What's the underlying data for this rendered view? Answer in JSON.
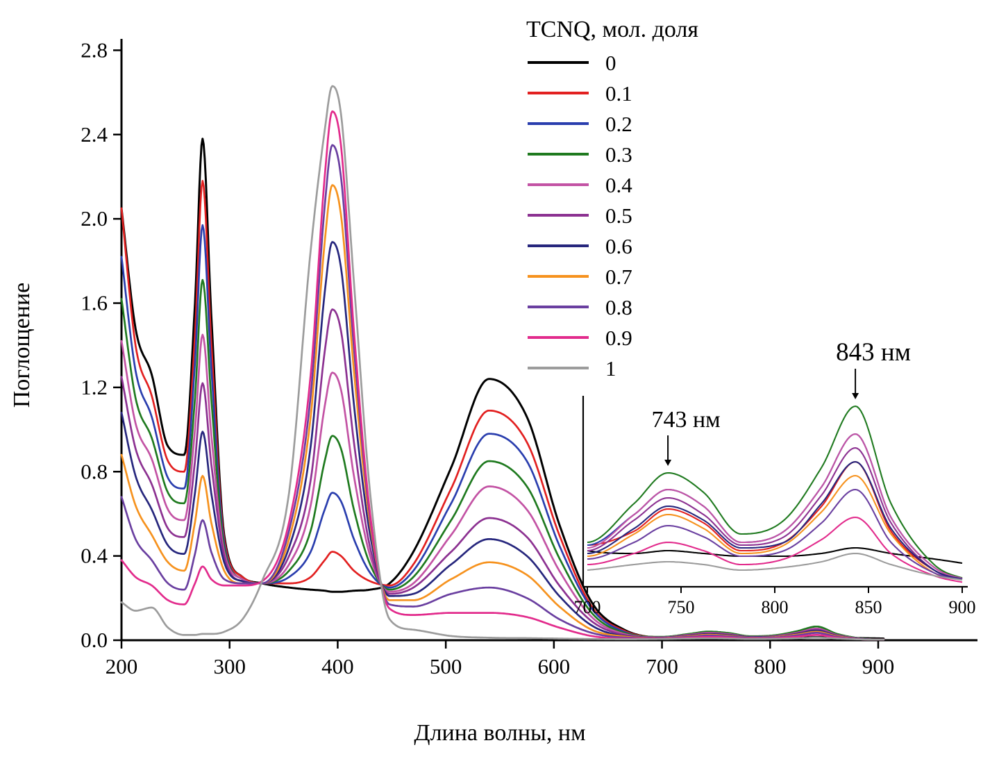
{
  "figure": {
    "background": "#ffffff"
  },
  "chart_data": {
    "type": "line",
    "title": "",
    "xlabel": "Длина волны,  нм",
    "ylabel": "Поглощение",
    "xlim": [
      200,
      990
    ],
    "ylim": [
      0,
      2.9
    ],
    "xticks": [
      200,
      300,
      400,
      500,
      600,
      700,
      800,
      900
    ],
    "yticks": [
      0.0,
      0.4,
      0.8,
      1.2,
      1.6,
      2.0,
      2.4,
      2.8
    ],
    "grid": false,
    "legend_title": "TCNQ, мол. доля",
    "legend_position": "top-right",
    "axis_color": "#000000",
    "x": [
      200,
      213,
      228,
      243,
      258,
      268,
      275,
      283,
      295,
      312,
      330,
      355,
      375,
      388,
      395,
      403,
      415,
      430,
      448,
      470,
      505,
      540,
      575,
      605,
      635,
      665,
      700,
      725,
      743,
      762,
      782,
      805,
      825,
      843,
      862,
      885,
      905
    ],
    "series": [
      {
        "name": "0",
        "color": "#000000",
        "values": [
          2.05,
          1.48,
          1.26,
          0.92,
          0.88,
          1.6,
          2.38,
          1.55,
          0.5,
          0.3,
          0.27,
          0.25,
          0.24,
          0.235,
          0.23,
          0.23,
          0.235,
          0.24,
          0.27,
          0.42,
          0.82,
          1.24,
          1.06,
          0.55,
          0.18,
          0.05,
          0.013,
          0.012,
          0.013,
          0.012,
          0.011,
          0.011,
          0.012,
          0.014,
          0.012,
          0.01,
          0.008
        ]
      },
      {
        "name": "0.1",
        "color": "#e22020",
        "values": [
          2.05,
          1.4,
          1.16,
          0.85,
          0.8,
          1.45,
          2.18,
          1.42,
          0.48,
          0.3,
          0.27,
          0.27,
          0.3,
          0.38,
          0.42,
          0.4,
          0.33,
          0.28,
          0.26,
          0.36,
          0.72,
          1.09,
          0.94,
          0.5,
          0.16,
          0.045,
          0.015,
          0.02,
          0.028,
          0.023,
          0.013,
          0.016,
          0.029,
          0.045,
          0.02,
          0.006,
          0.002
        ]
      },
      {
        "name": "0.2",
        "color": "#2a3eae",
        "values": [
          1.82,
          1.28,
          1.06,
          0.77,
          0.72,
          1.32,
          1.97,
          1.3,
          0.46,
          0.29,
          0.27,
          0.3,
          0.42,
          0.62,
          0.7,
          0.66,
          0.48,
          0.32,
          0.25,
          0.33,
          0.65,
          0.98,
          0.85,
          0.45,
          0.15,
          0.04,
          0.015,
          0.026,
          0.035,
          0.029,
          0.016,
          0.02,
          0.036,
          0.055,
          0.025,
          0.007,
          0.002
        ]
      },
      {
        "name": "0.3",
        "color": "#1f7a1f",
        "values": [
          1.62,
          1.15,
          0.96,
          0.7,
          0.65,
          1.15,
          1.71,
          1.15,
          0.44,
          0.29,
          0.27,
          0.33,
          0.52,
          0.85,
          0.97,
          0.91,
          0.62,
          0.36,
          0.24,
          0.3,
          0.57,
          0.85,
          0.73,
          0.39,
          0.13,
          0.035,
          0.016,
          0.03,
          0.041,
          0.034,
          0.019,
          0.024,
          0.043,
          0.065,
          0.03,
          0.008,
          0.002
        ]
      },
      {
        "name": "0.4",
        "color": "#c353a4",
        "values": [
          1.42,
          1.03,
          0.86,
          0.62,
          0.57,
          1.0,
          1.45,
          0.98,
          0.42,
          0.29,
          0.27,
          0.36,
          0.64,
          1.11,
          1.27,
          1.19,
          0.78,
          0.4,
          0.23,
          0.27,
          0.5,
          0.73,
          0.62,
          0.33,
          0.11,
          0.03,
          0.014,
          0.026,
          0.035,
          0.029,
          0.016,
          0.02,
          0.036,
          0.055,
          0.025,
          0.007,
          0.002
        ]
      },
      {
        "name": "0.5",
        "color": "#8c3191",
        "values": [
          1.25,
          0.91,
          0.74,
          0.53,
          0.49,
          0.85,
          1.22,
          0.84,
          0.4,
          0.28,
          0.27,
          0.4,
          0.76,
          1.37,
          1.57,
          1.47,
          0.94,
          0.44,
          0.22,
          0.25,
          0.42,
          0.58,
          0.49,
          0.26,
          0.09,
          0.025,
          0.013,
          0.024,
          0.032,
          0.026,
          0.015,
          0.018,
          0.033,
          0.05,
          0.023,
          0.006,
          0.002
        ]
      },
      {
        "name": "0.6",
        "color": "#26267d",
        "values": [
          1.08,
          0.78,
          0.62,
          0.45,
          0.41,
          0.7,
          0.99,
          0.7,
          0.37,
          0.28,
          0.27,
          0.44,
          0.92,
          1.65,
          1.89,
          1.77,
          1.12,
          0.5,
          0.21,
          0.22,
          0.36,
          0.48,
          0.4,
          0.21,
          0.07,
          0.02,
          0.012,
          0.021,
          0.029,
          0.024,
          0.014,
          0.016,
          0.03,
          0.045,
          0.021,
          0.006,
          0.002
        ]
      },
      {
        "name": "0.7",
        "color": "#f6921e",
        "values": [
          0.88,
          0.64,
          0.5,
          0.37,
          0.33,
          0.56,
          0.78,
          0.56,
          0.33,
          0.27,
          0.27,
          0.48,
          1.06,
          1.89,
          2.16,
          2.02,
          1.28,
          0.55,
          0.19,
          0.19,
          0.29,
          0.37,
          0.31,
          0.16,
          0.05,
          0.018,
          0.011,
          0.019,
          0.026,
          0.021,
          0.012,
          0.015,
          0.027,
          0.04,
          0.019,
          0.005,
          0.002
        ]
      },
      {
        "name": "0.8",
        "color": "#6a3fa0",
        "values": [
          0.68,
          0.48,
          0.38,
          0.27,
          0.24,
          0.41,
          0.57,
          0.42,
          0.29,
          0.27,
          0.27,
          0.52,
          1.16,
          2.06,
          2.35,
          2.2,
          1.39,
          0.58,
          0.17,
          0.16,
          0.22,
          0.25,
          0.2,
          0.1,
          0.035,
          0.013,
          0.01,
          0.016,
          0.022,
          0.018,
          0.011,
          0.013,
          0.023,
          0.035,
          0.016,
          0.005,
          0.002
        ]
      },
      {
        "name": "0.9",
        "color": "#e22b8c",
        "values": [
          0.38,
          0.3,
          0.26,
          0.19,
          0.17,
          0.27,
          0.35,
          0.29,
          0.26,
          0.26,
          0.28,
          0.56,
          1.26,
          2.2,
          2.51,
          2.35,
          1.47,
          0.6,
          0.15,
          0.12,
          0.13,
          0.13,
          0.11,
          0.06,
          0.02,
          0.008,
          0.008,
          0.012,
          0.016,
          0.013,
          0.008,
          0.01,
          0.017,
          0.025,
          0.012,
          0.004,
          0.001
        ]
      },
      {
        "name": "1",
        "color": "#9c9c9c",
        "values": [
          0.18,
          0.14,
          0.155,
          0.06,
          0.025,
          0.025,
          0.03,
          0.03,
          0.04,
          0.1,
          0.28,
          0.7,
          1.85,
          2.42,
          2.63,
          2.5,
          1.7,
          0.7,
          0.1,
          0.05,
          0.02,
          0.012,
          0.01,
          0.008,
          0.006,
          0.005,
          0.006,
          0.008,
          0.009,
          0.008,
          0.006,
          0.007,
          0.009,
          0.012,
          0.008,
          0.004,
          0.002
        ]
      }
    ],
    "inset": {
      "xlim": [
        700,
        900
      ],
      "xticks": [
        700,
        750,
        800,
        850,
        900
      ],
      "ylim": [
        0,
        0.07
      ],
      "annotations": [
        {
          "text": "743 нм",
          "wavelength": 743
        },
        {
          "text": "843 нм",
          "wavelength": 843
        }
      ]
    }
  }
}
